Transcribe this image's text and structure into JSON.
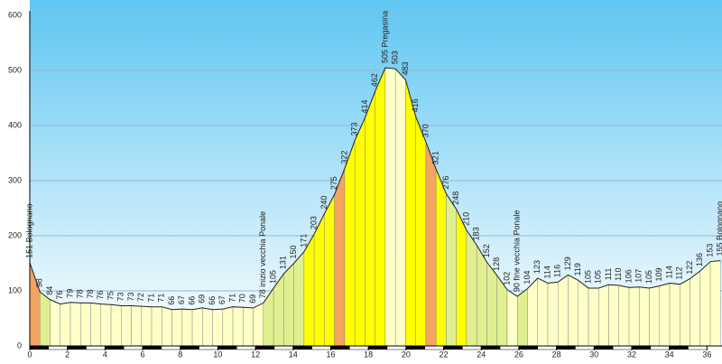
{
  "chart_data": {
    "type": "area",
    "x": [
      0,
      0.54,
      1.08,
      1.62,
      2.16,
      2.7,
      3.24,
      3.78,
      4.32,
      4.86,
      5.4,
      5.94,
      6.48,
      7.02,
      7.56,
      8.1,
      8.64,
      9.18,
      9.72,
      10.26,
      10.8,
      11.34,
      11.88,
      12.42,
      12.96,
      13.5,
      14.04,
      14.58,
      15.12,
      15.66,
      16.2,
      16.74,
      17.28,
      17.82,
      18.36,
      18.9,
      19.44,
      19.98,
      20.52,
      21.06,
      21.6,
      22.14,
      22.68,
      23.22,
      23.76,
      24.3,
      24.84,
      25.38,
      25.92,
      26.46,
      27,
      27.54,
      28.08,
      28.62,
      29.16,
      29.7,
      30.24,
      30.78,
      31.32,
      31.86,
      32.4,
      32.94,
      33.48,
      34.02,
      34.56,
      35.1,
      35.64,
      36.18,
      36.72
    ],
    "values": [
      151,
      98,
      84,
      76,
      79,
      78,
      78,
      76,
      75,
      73,
      73,
      72,
      71,
      71,
      66,
      67,
      66,
      69,
      66,
      67,
      71,
      70,
      69,
      78,
      105,
      131,
      150,
      171,
      203,
      240,
      275,
      322,
      373,
      414,
      462,
      505,
      503,
      483,
      416,
      370,
      321,
      276,
      248,
      210,
      183,
      152,
      128,
      102,
      90,
      104,
      123,
      114,
      116,
      129,
      119,
      105,
      105,
      111,
      110,
      106,
      107,
      105,
      109,
      114,
      112,
      122,
      136,
      153,
      155
    ],
    "value_labels": [
      "151 Bolognano",
      "98",
      "84",
      "76",
      "79",
      "78",
      "78",
      "76",
      "75",
      "73",
      "73",
      "72",
      "71",
      "71",
      "66",
      "67",
      "66",
      "69",
      "66",
      "67",
      "71",
      "70",
      "69",
      "78 inizio vecchia Ponale",
      "105",
      "131",
      "150",
      "171",
      "203",
      "240",
      "275",
      "322",
      "373",
      "414",
      "462",
      "505 Pregasina",
      "503",
      "483",
      "416",
      "370",
      "321",
      "276",
      "248",
      "210",
      "183",
      "152",
      "128",
      "102",
      "90 fine vecchia Ponale",
      "104",
      "123",
      "114",
      "116",
      "129",
      "119",
      "105",
      "105",
      "111",
      "110",
      "106",
      "107",
      "105",
      "109",
      "114",
      "112",
      "122",
      "136",
      "153",
      "155 Bolognano"
    ],
    "segment_colors": [
      "#f4a460",
      "#e0f090",
      "#ffffc8",
      "#ffffc8",
      "#ffffc8",
      "#ffffc8",
      "#ffffc8",
      "#ffffc8",
      "#ffffc8",
      "#ffffc8",
      "#ffffc8",
      "#ffffc8",
      "#ffffc8",
      "#ffffc8",
      "#ffffc8",
      "#ffffc8",
      "#ffffc8",
      "#ffffc8",
      "#ffffc8",
      "#ffffc8",
      "#ffffc8",
      "#ffffc8",
      "#ffffc8",
      "#e0f090",
      "#e0f090",
      "#e0f090",
      "#e0f090",
      "#ffff00",
      "#ffff00",
      "#ffff00",
      "#f4a460",
      "#ffff00",
      "#ffff00",
      "#ffff00",
      "#ffff00",
      "#ffffc8",
      "#ffffc8",
      "#ffff00",
      "#ffff00",
      "#f4a460",
      "#ffff00",
      "#e0f090",
      "#ffff00",
      "#e0f090",
      "#e0f090",
      "#e0f090",
      "#e0f090",
      "#ffffc8",
      "#e0f090",
      "#ffffc8",
      "#ffffc8",
      "#ffffc8",
      "#ffffc8",
      "#ffffc8",
      "#ffffc8",
      "#ffffc8",
      "#ffffc8",
      "#ffffc8",
      "#ffffc8",
      "#ffffc8",
      "#ffffc8",
      "#ffffc8",
      "#ffffc8",
      "#ffffc8",
      "#ffffc8",
      "#ffffc8",
      "#ffffc8",
      "#ffffc8"
    ],
    "xlim": [
      0,
      36.8
    ],
    "ylim": [
      0,
      600
    ],
    "xticks": [
      0,
      2,
      4,
      6,
      8,
      10,
      12,
      14,
      16,
      18,
      20,
      22,
      24,
      26,
      28,
      30,
      32,
      34,
      36
    ],
    "yticks": [
      0,
      100,
      200,
      300,
      400,
      500,
      600
    ],
    "grid": true
  }
}
